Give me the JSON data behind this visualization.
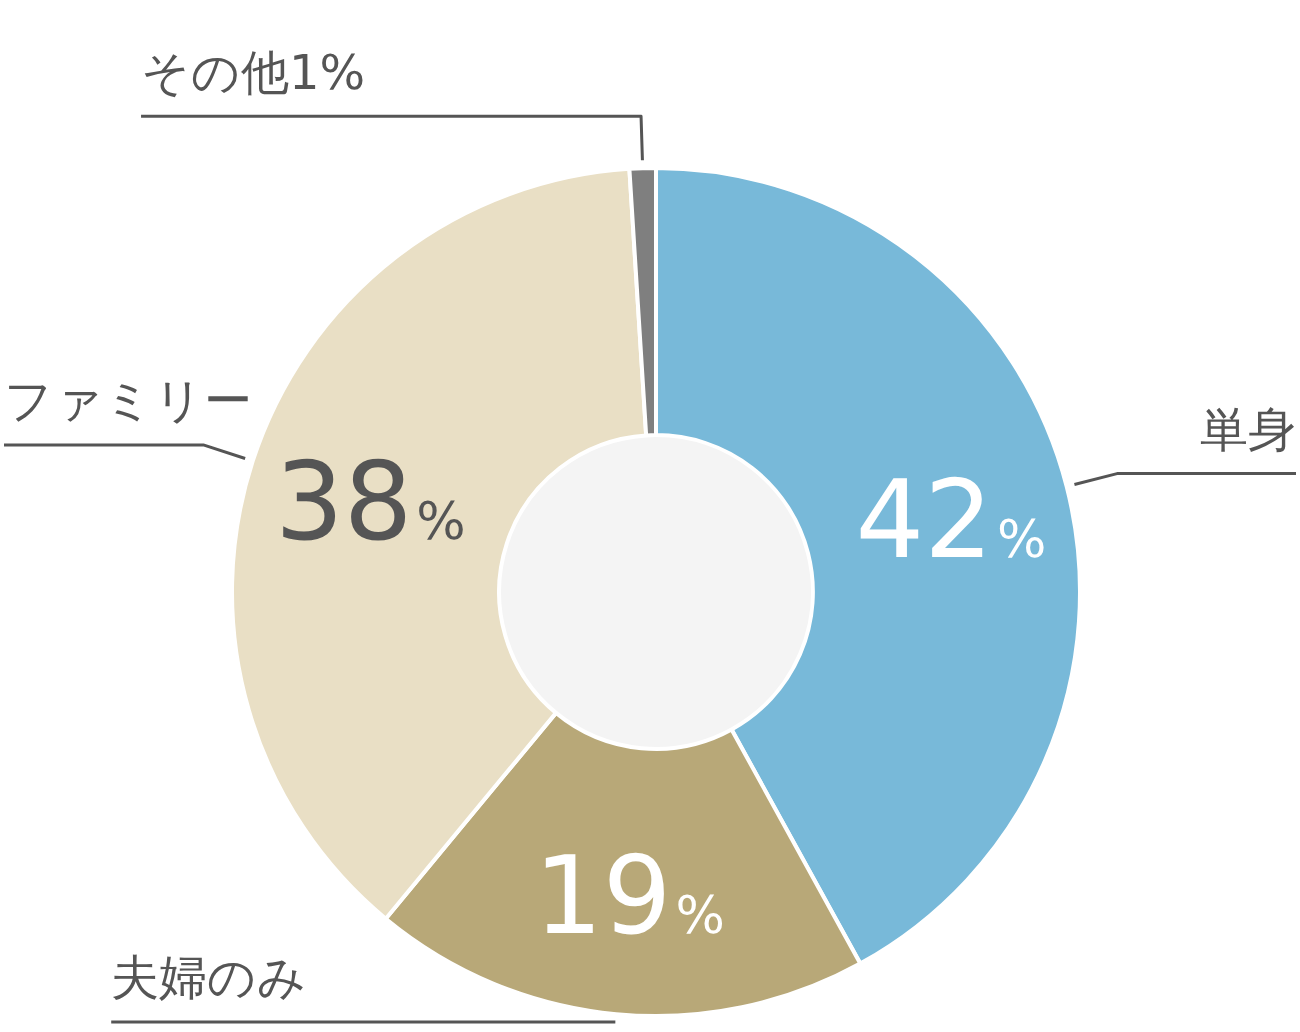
{
  "chart_data": {
    "type": "donut",
    "categories": [
      "単身",
      "夫婦のみ",
      "ファミリー",
      "その他"
    ],
    "values": [
      42,
      19,
      38,
      1
    ],
    "colors": [
      "#78b9d9",
      "#b8a878",
      "#e9dfc5",
      "#7f7f7f"
    ],
    "value_labels": [
      "42%",
      "19%",
      "38%",
      "1%"
    ],
    "legend": false
  }
}
